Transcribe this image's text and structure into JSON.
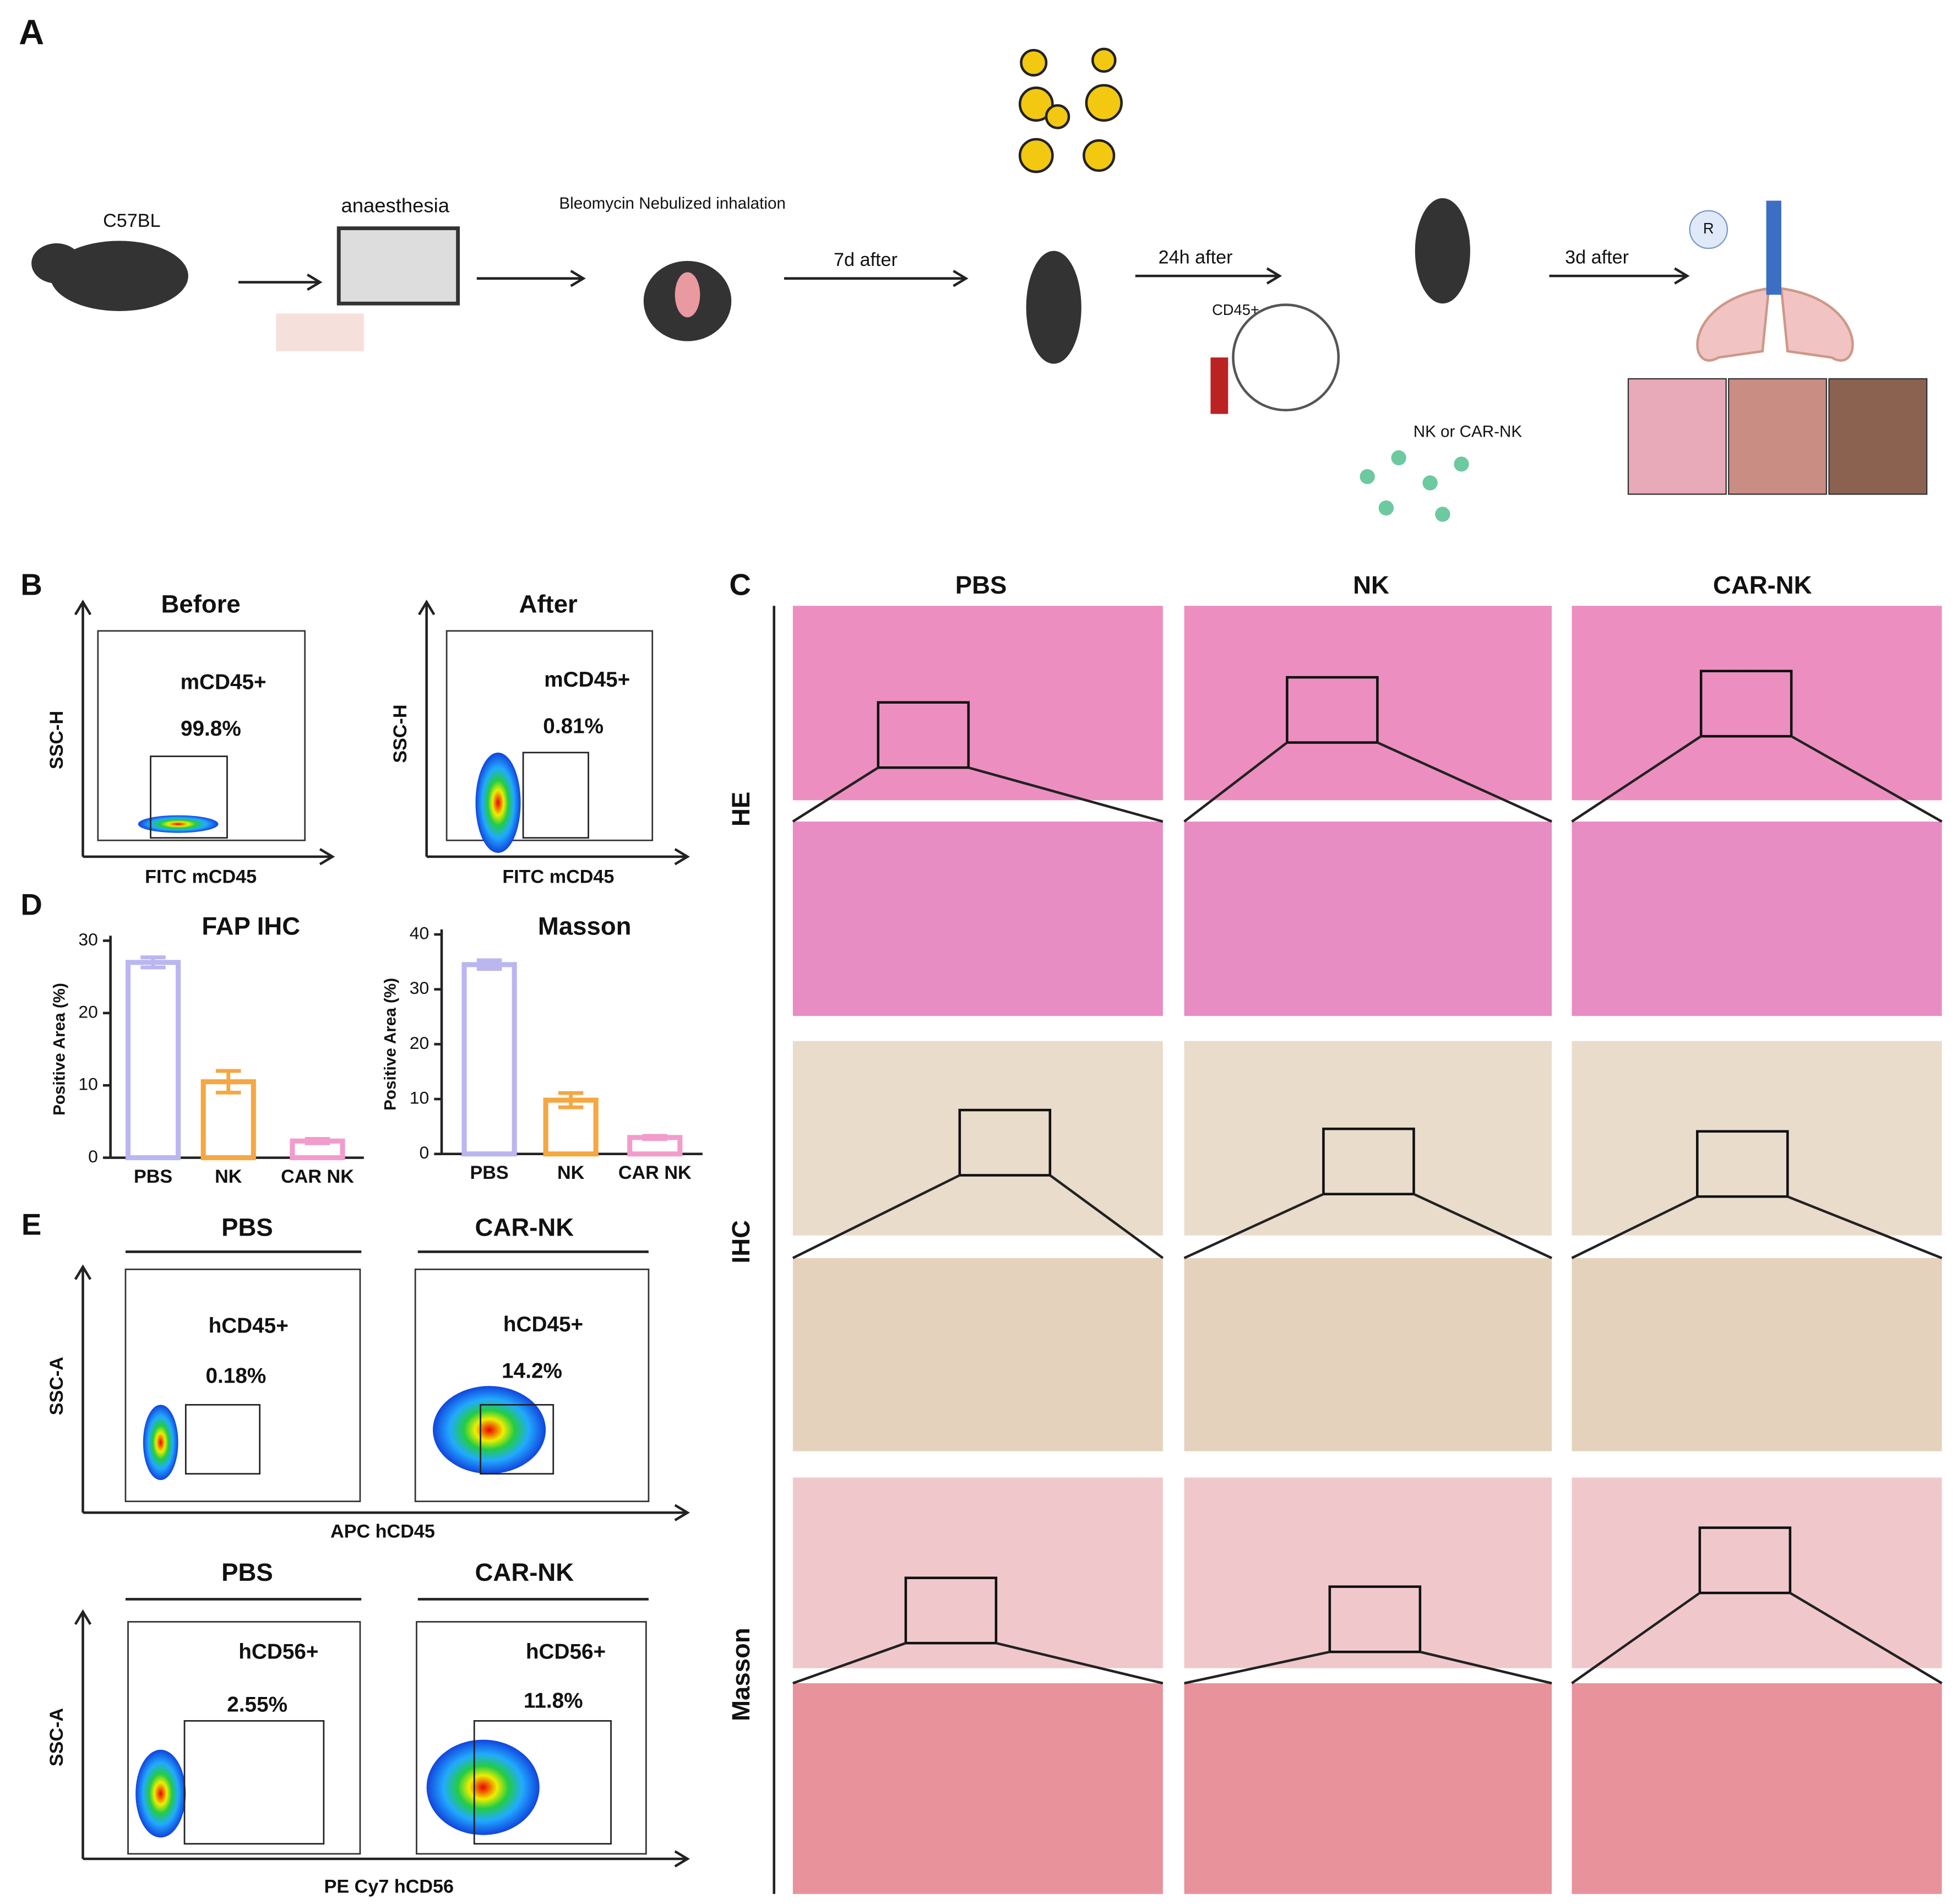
{
  "panel_a": {
    "label": "A",
    "strain": "C57BL",
    "step_anaesthesia": "anaesthesia",
    "step_bleomycin": "Bleomycin Nebulized inhalation",
    "arrow_1": "7d after",
    "arrow_2": "24h after",
    "cells": "CD45+",
    "injection": "NK or CAR-NK",
    "arrow_3": "3d after",
    "lung_marker": "R"
  },
  "panel_b": {
    "label": "B",
    "plots": [
      {
        "title": "Before",
        "y_label": "SSC-H",
        "x_label": "FITC mCD45",
        "gate": "mCD45+",
        "percent": "99.8%"
      },
      {
        "title": "After",
        "y_label": "SSC-H",
        "x_label": "FITC mCD45",
        "gate": "mCD45+",
        "percent": "0.81%"
      }
    ]
  },
  "panel_c": {
    "label": "C",
    "columns": [
      "PBS",
      "NK",
      "CAR-NK"
    ],
    "rows": [
      "HE",
      "IHC",
      "Masson"
    ]
  },
  "panel_d": {
    "label": "D"
  },
  "chart_data": [
    {
      "type": "bar",
      "title": "FAP IHC",
      "y_label": "Positive Area (%)",
      "categories": [
        "PBS",
        "NK",
        "CAR NK"
      ],
      "values": [
        27,
        10.5,
        2.3
      ],
      "errors": [
        0.7,
        1.5,
        0.3
      ],
      "colors": [
        "#b9b6f0",
        "#f5a742",
        "#f29ccc"
      ],
      "ylim": [
        0,
        30
      ],
      "yticks": [
        0,
        10,
        20,
        30
      ]
    },
    {
      "type": "bar",
      "title": "Masson",
      "y_label": "Positive Area (%)",
      "categories": [
        "PBS",
        "NK",
        "CAR NK"
      ],
      "values": [
        34.5,
        9.8,
        3
      ],
      "errors": [
        0.8,
        1.3,
        0.3
      ],
      "colors": [
        "#b9b6f0",
        "#f5a742",
        "#f29ccc"
      ],
      "ylim": [
        0,
        40
      ],
      "yticks": [
        0,
        10,
        20,
        30,
        40
      ]
    }
  ],
  "panel_e": {
    "label": "E",
    "y_label": "SSC-A",
    "groups": [
      {
        "x_label": "APC hCD45",
        "plots": [
          {
            "title": "PBS",
            "gate": "hCD45+",
            "percent": "0.18%"
          },
          {
            "title": "CAR-NK",
            "gate": "hCD45+",
            "percent": "14.2%"
          }
        ]
      },
      {
        "x_label": "PE Cy7 hCD56",
        "plots": [
          {
            "title": "PBS",
            "gate": "hCD56+",
            "percent": "2.55%"
          },
          {
            "title": "CAR-NK",
            "gate": "hCD56+",
            "percent": "11.8%"
          }
        ]
      }
    ]
  }
}
